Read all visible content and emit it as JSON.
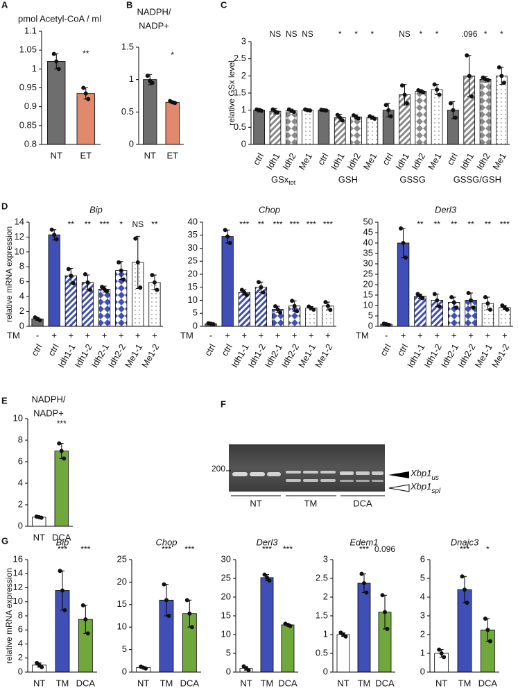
{
  "chart_data": [
    {
      "type": "bar",
      "panel": "A",
      "title": "pmol Acetyl-CoA / ml",
      "categories": [
        "NT",
        "ET"
      ],
      "values": [
        1.02,
        0.935
      ],
      "errors": [
        0.02,
        0.015
      ],
      "points": [
        [
          1.04,
          1.02,
          1.0
        ],
        [
          0.95,
          0.935,
          0.92
        ]
      ],
      "colors": [
        "#6e6e6e",
        "#e0896c"
      ],
      "patterns": [
        "solid",
        "solid"
      ],
      "sig": [
        null,
        "**"
      ],
      "ylim": [
        0.8,
        1.1
      ],
      "yticks": [
        0.8,
        0.85,
        0.9,
        0.95,
        1,
        1.05,
        1.1
      ]
    },
    {
      "type": "bar",
      "panel": "B",
      "title": [
        "NADPH/",
        "NADP+"
      ],
      "categories": [
        "NT",
        "ET"
      ],
      "values": [
        1.0,
        0.65
      ],
      "errors": [
        0.08,
        0.02
      ],
      "points": [
        [
          1.06,
          0.98,
          0.95
        ],
        [
          0.67,
          0.65,
          0.64
        ]
      ],
      "colors": [
        "#6e6e6e",
        "#e0896c"
      ],
      "patterns": [
        "solid",
        "solid"
      ],
      "sig": [
        null,
        "*"
      ],
      "ylim": [
        0,
        1.5
      ],
      "yticks": [
        0,
        0.5,
        1,
        1.5
      ]
    },
    {
      "type": "bar",
      "panel": "C",
      "ylabel": "relative GSx level",
      "rotate_labels": true,
      "categories": [
        "ctrl",
        "Idh1",
        "Idh2",
        "Me1",
        "ctrl",
        "Idh1",
        "Idh2",
        "Me1",
        "ctrl",
        "Idh1",
        "Idh2",
        "Me1",
        "ctrl",
        "Idh1",
        "Idh2",
        "Me1"
      ],
      "groups": [
        {
          "label": "GSx",
          "subscript": "tot"
        },
        {
          "label": "GSH"
        },
        {
          "label": "GSSG"
        },
        {
          "label": "GSSG/GSH"
        }
      ],
      "values": [
        1,
        0.97,
        0.98,
        1,
        1,
        0.78,
        0.8,
        0.78,
        1,
        1.45,
        1.55,
        1.6,
        1,
        2,
        1.9,
        2
      ],
      "errors": [
        0.05,
        0.08,
        0.05,
        0.03,
        0.02,
        0.1,
        0.06,
        0.05,
        0.2,
        0.3,
        0.05,
        0.15,
        0.25,
        0.6,
        0.08,
        0.25
      ],
      "points": [
        [
          1.02,
          1,
          0.98
        ],
        [
          1.02,
          0.96,
          0.93
        ],
        [
          1.02,
          0.98,
          0.95
        ],
        [
          1.02,
          1,
          0.99
        ],
        [
          1.01,
          1,
          0.99
        ],
        [
          0.86,
          0.78,
          0.7
        ],
        [
          0.85,
          0.8,
          0.76
        ],
        [
          0.82,
          0.78,
          0.75
        ],
        [
          1.15,
          1,
          0.82
        ],
        [
          1.72,
          1.45,
          1.2
        ],
        [
          1.58,
          1.55,
          1.52
        ],
        [
          1.75,
          1.6,
          1.45
        ],
        [
          1.2,
          1,
          0.78
        ],
        [
          2.6,
          2.0,
          1.4
        ],
        [
          1.95,
          1.9,
          1.88
        ],
        [
          2.25,
          2.0,
          1.8
        ]
      ],
      "colors": [
        "#6e6e6e",
        "#8a8a8a",
        "#8a8a8a",
        "#ffffff",
        "#6e6e6e",
        "#8a8a8a",
        "#8a8a8a",
        "#ffffff",
        "#6e6e6e",
        "#8a8a8a",
        "#8a8a8a",
        "#ffffff",
        "#6e6e6e",
        "#8a8a8a",
        "#8a8a8a",
        "#ffffff"
      ],
      "patterns": [
        "solid",
        "stripe",
        "diamond",
        "dots",
        "solid",
        "stripe",
        "diamond",
        "dots",
        "solid",
        "stripe",
        "diamond",
        "dots",
        "solid",
        "stripe",
        "diamond",
        "dots"
      ],
      "sig": [
        null,
        "NS",
        "NS",
        "NS",
        null,
        "*",
        "*",
        "*",
        null,
        "NS",
        "*",
        "*",
        null,
        ".096",
        "*",
        "*"
      ],
      "ylim": [
        0,
        3
      ],
      "yticks": [
        0,
        0.5,
        1,
        1.5,
        2,
        2.5,
        3
      ]
    },
    {
      "type": "bar",
      "panel": "D",
      "title": "Bip",
      "title_style": "italic",
      "ylabel": "relative mRNA expression",
      "rotate_labels": true,
      "treatment": {
        "label": "TM",
        "values": [
          "-",
          "+",
          "+",
          "+",
          "+",
          "+",
          "+",
          "+"
        ]
      },
      "categories": [
        "ctrl",
        "ctrl",
        "Idh1-1",
        "Idh1-2",
        "Idh2-1",
        "Idh2-2",
        "Me1-1",
        "Me1-2"
      ],
      "values": [
        1.0,
        12.3,
        6.8,
        5.9,
        5.0,
        7.5,
        8.6,
        5.9
      ],
      "errors": [
        0.2,
        0.7,
        1.0,
        1.0,
        0.4,
        1.2,
        3.5,
        1.0
      ],
      "points": [
        [
          1.2,
          1,
          0.8
        ],
        [
          13,
          12.3,
          11.7
        ],
        [
          7.7,
          6.8,
          5.8
        ],
        [
          7,
          5.9,
          4.9
        ],
        [
          5.3,
          5,
          4.7
        ],
        [
          8.6,
          7.5,
          6.3
        ],
        [
          11.8,
          8.6,
          5.2
        ],
        [
          6.9,
          5.9,
          4.9
        ]
      ],
      "colors": [
        "#6e6e6e",
        "#3f4fb5",
        "#3f4fb5",
        "#3f4fb5",
        "#3f4fb5",
        "#3f4fb5",
        "#ffffff",
        "#ffffff"
      ],
      "patterns": [
        "solid",
        "solid",
        "stripe",
        "stripe",
        "diamond",
        "diamond",
        "dots",
        "dots"
      ],
      "sig": [
        null,
        null,
        "**",
        "**",
        "***",
        "*",
        "NS",
        "**"
      ],
      "ylim": [
        0,
        14
      ],
      "yticks": [
        0,
        2,
        4,
        6,
        8,
        10,
        12,
        14
      ]
    },
    {
      "type": "bar",
      "title": "Chop",
      "title_style": "italic",
      "rotate_labels": true,
      "treatment": {
        "label": "TM",
        "values": [
          "-",
          "+",
          "+",
          "+",
          "+",
          "+",
          "+",
          "+"
        ]
      },
      "categories": [
        "ctrl",
        "ctrl",
        "Idh1-1",
        "Idh1-2",
        "Idh2-1",
        "Idh2-2",
        "Me1-1",
        "Me1-2"
      ],
      "values": [
        1.0,
        34.5,
        13,
        15,
        6.5,
        7.8,
        7.0,
        7.8
      ],
      "errors": [
        0.3,
        2.5,
        1,
        2,
        1.2,
        2,
        0.6,
        1.5
      ],
      "points": [
        [
          1.2,
          1,
          0.8
        ],
        [
          37,
          34.5,
          32
        ],
        [
          14,
          13,
          12
        ],
        [
          17,
          15,
          13
        ],
        [
          7.7,
          6.5,
          5.3
        ],
        [
          9.8,
          7.8,
          5.8
        ],
        [
          7.6,
          7,
          6.4
        ],
        [
          9.3,
          7.8,
          6.3
        ]
      ],
      "colors": [
        "#6e6e6e",
        "#3f4fb5",
        "#3f4fb5",
        "#3f4fb5",
        "#3f4fb5",
        "#3f4fb5",
        "#ffffff",
        "#ffffff"
      ],
      "patterns": [
        "solid",
        "solid",
        "stripe",
        "stripe",
        "diamond",
        "diamond",
        "dots",
        "dots"
      ],
      "sig": [
        null,
        null,
        "***",
        "**",
        "***",
        "***",
        "***",
        "***"
      ],
      "ylim": [
        0,
        40
      ],
      "yticks": [
        0,
        5,
        10,
        15,
        20,
        25,
        30,
        35,
        40
      ]
    },
    {
      "type": "bar",
      "title": "Derl3",
      "title_style": "italic",
      "rotate_labels": true,
      "treatment": {
        "label": "TM",
        "values": [
          "-",
          "+",
          "+",
          "+",
          "+",
          "+",
          "+",
          "+"
        ]
      },
      "categories": [
        "ctrl",
        "ctrl",
        "Idh1-1",
        "Idh1-2",
        "Idh2-1",
        "Idh2-2",
        "Me1-1",
        "Me1-2"
      ],
      "values": [
        1.0,
        40,
        14.5,
        12.5,
        11.5,
        12.5,
        11,
        9
      ],
      "errors": [
        0.3,
        7,
        1,
        3,
        2.5,
        3.5,
        3,
        1
      ],
      "points": [
        [
          1.3,
          1,
          0.7
        ],
        [
          47,
          40,
          33
        ],
        [
          15.5,
          14.5,
          13.5
        ],
        [
          15.5,
          12.5,
          9.5
        ],
        [
          14,
          11.5,
          9
        ],
        [
          16,
          12.5,
          9
        ],
        [
          14,
          11,
          8
        ],
        [
          10,
          9,
          8
        ]
      ],
      "colors": [
        "#6e6e6e",
        "#3f4fb5",
        "#3f4fb5",
        "#3f4fb5",
        "#3f4fb5",
        "#3f4fb5",
        "#ffffff",
        "#ffffff"
      ],
      "patterns": [
        "solid",
        "solid",
        "stripe",
        "stripe",
        "diamond",
        "diamond",
        "dots",
        "dots"
      ],
      "sig": [
        null,
        null,
        "**",
        "**",
        "**",
        "**",
        "**",
        "***"
      ],
      "ylim": [
        0,
        50
      ],
      "yticks": [
        0,
        5,
        10,
        15,
        20,
        25,
        30,
        35,
        40,
        45,
        50
      ]
    },
    {
      "type": "bar",
      "panel": "E",
      "title": [
        "NADPH/",
        "NADP+"
      ],
      "categories": [
        "NT",
        "DCA"
      ],
      "values": [
        0.85,
        7.0
      ],
      "errors": [
        0.05,
        0.7
      ],
      "points": [
        [
          0.9,
          0.85,
          0.8
        ],
        [
          7.7,
          7,
          6.3
        ]
      ],
      "colors": [
        "#ffffff",
        "#70a83c"
      ],
      "patterns": [
        "solid",
        "solid"
      ],
      "sig": [
        null,
        "***"
      ],
      "ylim": [
        0,
        10
      ],
      "yticks": [
        0,
        2,
        4,
        6,
        8,
        10
      ]
    },
    {
      "type": "bar",
      "panel": "G",
      "title": "Bip",
      "title_style": "italic",
      "ylabel": "relative mRNA expression",
      "categories": [
        "NT",
        "TM",
        "DCA"
      ],
      "values": [
        1.0,
        11.6,
        7.5
      ],
      "errors": [
        0.3,
        2.8,
        2
      ],
      "points": [
        [
          1.3,
          1,
          0.7
        ],
        [
          14.4,
          11.6,
          8.8
        ],
        [
          9.5,
          7.5,
          5.5
        ]
      ],
      "colors": [
        "#ffffff",
        "#3f4fb5",
        "#70a83c"
      ],
      "patterns": [
        "solid",
        "solid",
        "solid"
      ],
      "sig": [
        null,
        "***",
        "***"
      ],
      "ylim": [
        0,
        16
      ],
      "yticks": [
        0,
        2,
        4,
        6,
        8,
        10,
        12,
        14,
        16
      ]
    },
    {
      "type": "bar",
      "title": "Chop",
      "title_style": "italic",
      "categories": [
        "NT",
        "TM",
        "DCA"
      ],
      "values": [
        1.0,
        16,
        13
      ],
      "errors": [
        0.2,
        3.5,
        3
      ],
      "points": [
        [
          1.2,
          1,
          0.8
        ],
        [
          19.5,
          16,
          12.5
        ],
        [
          16,
          13,
          10
        ]
      ],
      "colors": [
        "#ffffff",
        "#3f4fb5",
        "#70a83c"
      ],
      "patterns": [
        "solid",
        "solid",
        "solid"
      ],
      "sig": [
        null,
        "***",
        "***"
      ],
      "ylim": [
        0,
        25
      ],
      "yticks": [
        0,
        5,
        10,
        15,
        20,
        25
      ]
    },
    {
      "type": "bar",
      "title": "Derl3",
      "title_style": "italic",
      "categories": [
        "NT",
        "TM",
        "DCA"
      ],
      "values": [
        1.0,
        25.2,
        12.6
      ],
      "errors": [
        0.5,
        0.8,
        0.3
      ],
      "points": [
        [
          1.5,
          1,
          0.5
        ],
        [
          26,
          25.2,
          24.4
        ],
        [
          12.9,
          12.6,
          12.3
        ]
      ],
      "colors": [
        "#ffffff",
        "#3f4fb5",
        "#70a83c"
      ],
      "patterns": [
        "solid",
        "solid",
        "solid"
      ],
      "sig": [
        null,
        "***",
        "***"
      ],
      "ylim": [
        0,
        30
      ],
      "yticks": [
        0,
        5,
        10,
        15,
        20,
        25,
        30
      ]
    },
    {
      "type": "bar",
      "title": "Edem1",
      "title_style": "italic",
      "categories": [
        "NT",
        "TM",
        "DCA"
      ],
      "values": [
        1.0,
        2.37,
        1.6
      ],
      "errors": [
        0.05,
        0.25,
        0.45
      ],
      "points": [
        [
          1.05,
          1,
          0.95
        ],
        [
          2.62,
          2.37,
          2.12
        ],
        [
          2.05,
          1.6,
          1.15
        ]
      ],
      "colors": [
        "#ffffff",
        "#3f4fb5",
        "#70a83c"
      ],
      "patterns": [
        "solid",
        "solid",
        "solid"
      ],
      "sig": [
        null,
        "***",
        "0.096"
      ],
      "ylim": [
        0,
        3
      ],
      "yticks": [
        0,
        0.5,
        1,
        1.5,
        2,
        2.5,
        3
      ]
    },
    {
      "type": "bar",
      "title": "Dnajc3",
      "title_style": "italic",
      "categories": [
        "NT",
        "TM",
        "DCA"
      ],
      "values": [
        1.0,
        4.4,
        2.25
      ],
      "errors": [
        0.2,
        0.7,
        0.6
      ],
      "points": [
        [
          1.2,
          1,
          0.8
        ],
        [
          5.1,
          4.4,
          3.7
        ],
        [
          2.85,
          2.25,
          1.65
        ]
      ],
      "colors": [
        "#ffffff",
        "#3f4fb5",
        "#70a83c"
      ],
      "patterns": [
        "solid",
        "solid",
        "solid"
      ],
      "sig": [
        null,
        "***",
        "*"
      ],
      "ylim": [
        0,
        6
      ],
      "yticks": [
        0,
        1,
        2,
        3,
        4,
        5,
        6
      ]
    }
  ],
  "gel": {
    "panel": "F",
    "marker": "200",
    "bands": [
      {
        "label": "Xbp1",
        "subscript": "us"
      },
      {
        "label": "Xbp1",
        "subscript": "spl"
      }
    ],
    "lanes": [
      "NT",
      "TM",
      "DCA"
    ]
  }
}
